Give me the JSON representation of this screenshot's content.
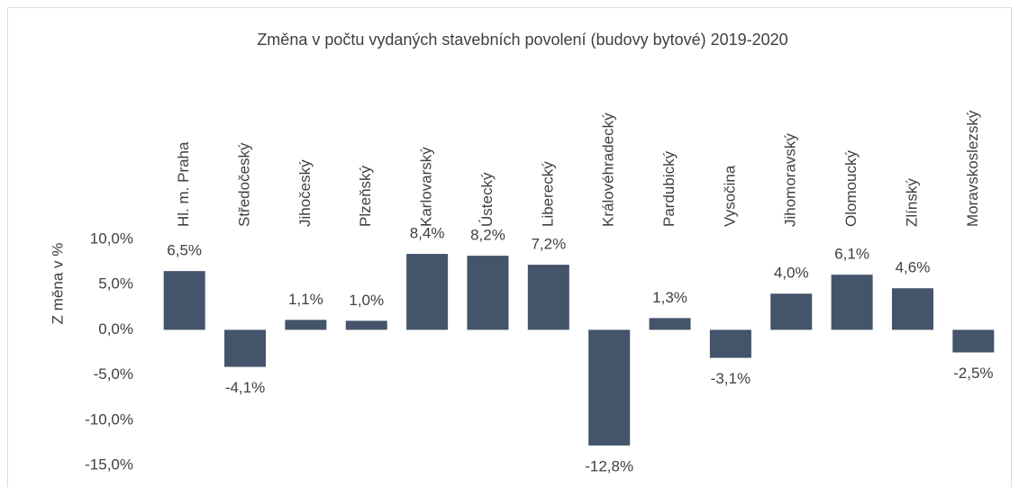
{
  "chart_data": {
    "type": "bar",
    "title": "Změna v počtu vydaných stavebních povolení (budovy bytové) 2019-2020",
    "y_label": "Z měna v %",
    "categories": [
      "Hl. m. Praha",
      "Středočeský",
      "Jihočeský",
      "Plzeňský",
      "Karlovarský",
      "Ústecký",
      "Liberecký",
      "Královéhradecký",
      "Pardubický",
      "Vysočina",
      "Jihomoravský",
      "Olomoucký",
      "Zlínský",
      "Moravskoslezský"
    ],
    "values": [
      6.5,
      -4.1,
      1.1,
      1.0,
      8.4,
      8.2,
      7.2,
      -12.8,
      1.3,
      -3.1,
      4.0,
      6.1,
      4.6,
      -2.5
    ],
    "value_labels": [
      "6,5%",
      "-4,1%",
      "1,1%",
      "1,0%",
      "8,4%",
      "8,2%",
      "7,2%",
      "-12,8%",
      "1,3%",
      "-3,1%",
      "4,0%",
      "6,1%",
      "4,6%",
      "-2,5%"
    ],
    "color": "#44546a",
    "ylim": [
      -15,
      10
    ],
    "yticks": [
      {
        "value": -15,
        "label": "-15,0%"
      },
      {
        "value": -10,
        "label": "-10,0%"
      },
      {
        "value": -5,
        "label": "-5,0%"
      },
      {
        "value": 0,
        "label": "0,0%"
      },
      {
        "value": 5,
        "label": "5,0%"
      },
      {
        "value": 10,
        "label": "10,0%"
      }
    ],
    "grid": false
  }
}
